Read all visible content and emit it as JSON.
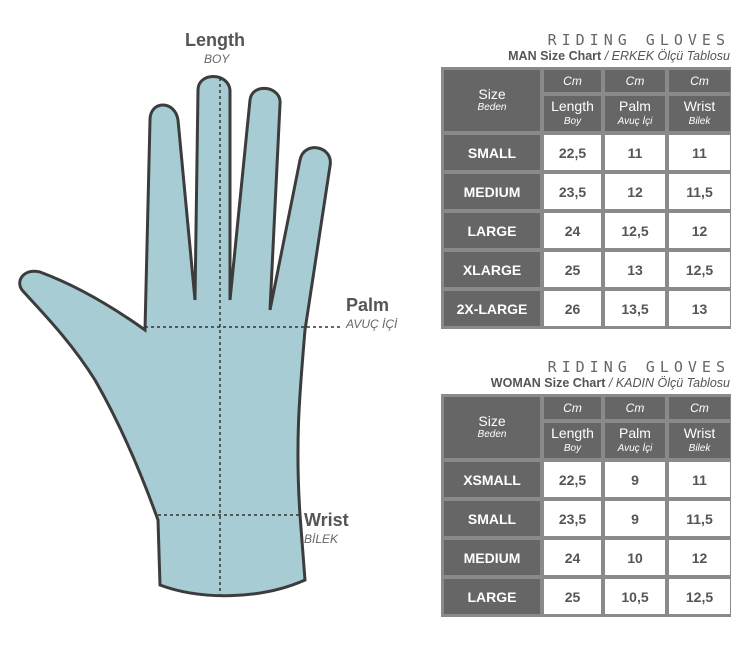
{
  "labels": {
    "length": "Length",
    "length_tr": "BOY",
    "palm": "Palm",
    "palm_tr": "AVUÇ İÇİ",
    "wrist": "Wrist",
    "wrist_tr": "BİLEK"
  },
  "colors": {
    "hand": "#a8ccd3",
    "table_header": "#666666",
    "table_frame": "#8a8a8a"
  },
  "man": {
    "title": "RIDING GLOVES",
    "subtitle": "MAN Size Chart",
    "subtitle_tr": "/ ERKEK Ölçü Tablosu",
    "unit": "Cm",
    "size": "Size",
    "size_tr": "Beden",
    "columns": [
      {
        "label": "Length",
        "tr": "Boy"
      },
      {
        "label": "Palm",
        "tr": "Avuç İçi"
      },
      {
        "label": "Wrist",
        "tr": "Bilek"
      }
    ],
    "rows": [
      [
        "SMALL",
        "22,5",
        "11",
        "11"
      ],
      [
        "MEDIUM",
        "23,5",
        "12",
        "11,5"
      ],
      [
        "LARGE",
        "24",
        "12,5",
        "12"
      ],
      [
        "XLARGE",
        "25",
        "13",
        "12,5"
      ],
      [
        "2X-LARGE",
        "26",
        "13,5",
        "13"
      ]
    ]
  },
  "woman": {
    "title": "RIDING GLOVES",
    "subtitle": "WOMAN Size Chart",
    "subtitle_tr": "/ KADIN Ölçü Tablosu",
    "unit": "Cm",
    "size": "Size",
    "size_tr": "Beden",
    "columns": [
      {
        "label": "Length",
        "tr": "Boy"
      },
      {
        "label": "Palm",
        "tr": "Avuç İçi"
      },
      {
        "label": "Wrist",
        "tr": "Bilek"
      }
    ],
    "rows": [
      [
        "XSMALL",
        "22,5",
        "9",
        "11"
      ],
      [
        "SMALL",
        "23,5",
        "9",
        "11,5"
      ],
      [
        "MEDIUM",
        "24",
        "10",
        "12"
      ],
      [
        "LARGE",
        "25",
        "10,5",
        "12,5"
      ]
    ]
  }
}
